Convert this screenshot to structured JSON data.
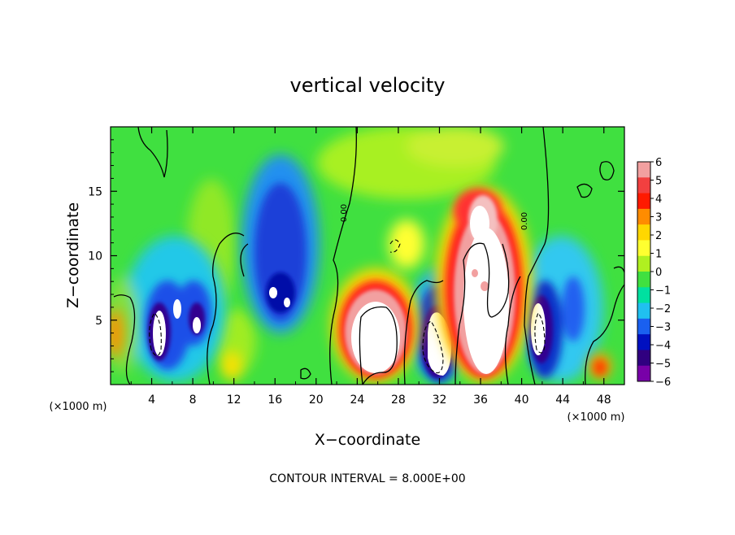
{
  "chart_data": {
    "type": "heatmap",
    "title": "vertical velocity",
    "xlabel": "X−coordinate",
    "ylabel": "Z−coordinate",
    "x_unit_label_left": "(×1000 m)",
    "x_unit_label_right": "(×1000 m)",
    "footer": "CONTOUR INTERVAL = 8.000E+00",
    "xlim": [
      0,
      50
    ],
    "ylim": [
      0,
      20
    ],
    "x_ticks": [
      4,
      8,
      12,
      16,
      20,
      24,
      28,
      32,
      36,
      40,
      44,
      48
    ],
    "x_tick_labels": [
      "4",
      "8",
      "12",
      "16",
      "20",
      "24",
      "28",
      "32",
      "36",
      "40",
      "44",
      "48"
    ],
    "y_ticks": [
      5,
      10,
      15
    ],
    "y_tick_labels": [
      "5",
      "10",
      "15"
    ],
    "contour_labels": [
      "0.00",
      "0.00"
    ],
    "colorbar": {
      "levels": [
        6,
        5,
        4,
        3,
        2,
        1,
        0,
        -1,
        -2,
        -3,
        -4,
        -5,
        -6
      ],
      "labels": [
        "6",
        "5",
        "4",
        "3",
        "2",
        "1",
        "0",
        "−1",
        "−2",
        "−3",
        "−4",
        "−5",
        "−6"
      ],
      "colors": [
        "#f2a0a0",
        "#f24040",
        "#ff1a00",
        "#ff8c00",
        "#ffd700",
        "#ffff30",
        "#b0f020",
        "#40e040",
        "#00e0a0",
        "#20c0f0",
        "#1a60f0",
        "#0010c0",
        "#300080",
        "#7800a8"
      ]
    },
    "features": [
      {
        "type": "updraft_core",
        "x": 36,
        "zmin": 0.5,
        "zmax": 16,
        "peak": 8
      },
      {
        "type": "updraft_core",
        "x": 25.5,
        "zmin": 0.5,
        "zmax": 8,
        "peak": 8
      },
      {
        "type": "downdraft_core",
        "x": 5,
        "zmin": 1,
        "zmax": 7,
        "peak": -8
      },
      {
        "type": "downdraft_core",
        "x": 7,
        "zmin": 3.5,
        "zmax": 7,
        "peak": -7
      },
      {
        "type": "downdraft",
        "x": 16.5,
        "zmin": 4,
        "zmax": 16,
        "peak": -7
      },
      {
        "type": "downdraft_core",
        "x": 31.5,
        "zmin": 0.5,
        "zmax": 8,
        "peak": -8
      },
      {
        "type": "downdraft_core",
        "x": 42,
        "zmin": 1.5,
        "zmax": 8,
        "peak": -8
      },
      {
        "type": "downdraft",
        "x": 44.5,
        "zmin": 1,
        "zmax": 13,
        "peak": -4
      }
    ]
  }
}
